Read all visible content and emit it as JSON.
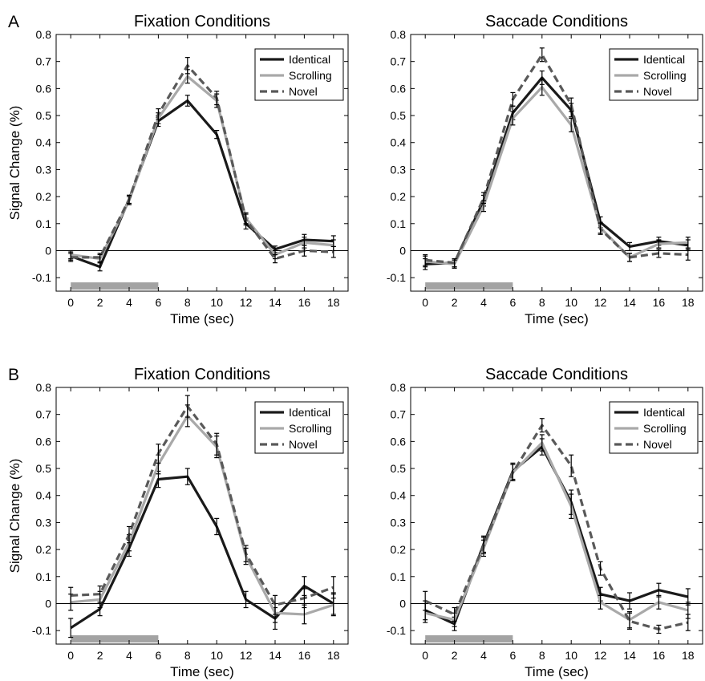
{
  "panel_labels": [
    "A",
    "B"
  ],
  "colors": {
    "Identical": "#1a1a1a",
    "Scrolling": "#a9a9a9",
    "Novel": "#595959",
    "stim_bar": "#a3a3a3"
  },
  "chart_data": [
    {
      "type": "line",
      "panel": "A",
      "title": "Fixation Conditions",
      "xlabel": "Time (sec)",
      "ylabel": "Signal Change (%)",
      "x": [
        0,
        2,
        4,
        6,
        8,
        10,
        12,
        14,
        16,
        18
      ],
      "xticks": [
        "0",
        "2",
        "4",
        "6",
        "8",
        "10",
        "12",
        "14",
        "16",
        "18"
      ],
      "yticks": [
        "-0.1",
        "0",
        "0.1",
        "0.2",
        "0.3",
        "0.4",
        "0.5",
        "0.6",
        "0.7",
        "0.8"
      ],
      "xlim": [
        -1,
        19
      ],
      "ylim": [
        -0.15,
        0.8
      ],
      "grid": false,
      "legend": "top-right",
      "stimulus_period": [
        0,
        6
      ],
      "series": [
        {
          "name": "Identical",
          "style": "solid",
          "values": [
            -0.02,
            -0.06,
            0.19,
            0.48,
            0.555,
            0.43,
            0.1,
            0.005,
            0.04,
            0.035
          ],
          "errors": [
            0.015,
            0.015,
            0.015,
            0.02,
            0.02,
            0.015,
            0.02,
            0.012,
            0.02,
            0.02
          ]
        },
        {
          "name": "Scrolling",
          "style": "solid",
          "values": [
            -0.015,
            -0.03,
            0.185,
            0.49,
            0.645,
            0.555,
            0.12,
            -0.015,
            0.03,
            0.02
          ],
          "errors": [
            0.015,
            0.015,
            0.015,
            0.02,
            0.025,
            0.025,
            0.02,
            0.015,
            0.02,
            0.02
          ]
        },
        {
          "name": "Novel",
          "style": "dashed",
          "values": [
            -0.025,
            -0.025,
            0.19,
            0.505,
            0.685,
            0.565,
            0.115,
            -0.03,
            0.0,
            -0.005
          ],
          "errors": [
            0.015,
            0.015,
            0.015,
            0.02,
            0.03,
            0.025,
            0.02,
            0.015,
            0.02,
            0.02
          ]
        }
      ]
    },
    {
      "type": "line",
      "panel": "A",
      "title": "Saccade Conditions",
      "xlabel": "Time (sec)",
      "ylabel": "",
      "x": [
        0,
        2,
        4,
        6,
        8,
        10,
        12,
        14,
        16,
        18
      ],
      "xticks": [
        "0",
        "2",
        "4",
        "6",
        "8",
        "10",
        "12",
        "14",
        "16",
        "18"
      ],
      "yticks": [
        "-0.1",
        "0",
        "0.1",
        "0.2",
        "0.3",
        "0.4",
        "0.5",
        "0.6",
        "0.7",
        "0.8"
      ],
      "xlim": [
        -1,
        19
      ],
      "ylim": [
        -0.15,
        0.8
      ],
      "grid": false,
      "legend": "top-right",
      "stimulus_period": [
        0,
        6
      ],
      "series": [
        {
          "name": "Identical",
          "style": "solid",
          "values": [
            -0.05,
            -0.045,
            0.185,
            0.51,
            0.64,
            0.52,
            0.105,
            0.015,
            0.035,
            0.02
          ],
          "errors": [
            0.02,
            0.015,
            0.02,
            0.025,
            0.025,
            0.025,
            0.02,
            0.015,
            0.015,
            0.02
          ]
        },
        {
          "name": "Scrolling",
          "style": "solid",
          "values": [
            -0.04,
            -0.05,
            0.165,
            0.49,
            0.605,
            0.465,
            0.085,
            -0.025,
            0.025,
            0.03
          ],
          "errors": [
            0.02,
            0.015,
            0.02,
            0.025,
            0.03,
            0.025,
            0.02,
            0.015,
            0.015,
            0.02
          ]
        },
        {
          "name": "Novel",
          "style": "dashed",
          "values": [
            -0.035,
            -0.045,
            0.195,
            0.56,
            0.725,
            0.54,
            0.08,
            -0.025,
            -0.01,
            -0.015
          ],
          "errors": [
            0.02,
            0.015,
            0.02,
            0.025,
            0.025,
            0.025,
            0.02,
            0.015,
            0.015,
            0.02
          ]
        }
      ]
    },
    {
      "type": "line",
      "panel": "B",
      "title": "Fixation Conditions",
      "xlabel": "Time (sec)",
      "ylabel": "Signal Change (%)",
      "x": [
        0,
        2,
        4,
        6,
        8,
        10,
        12,
        14,
        16,
        18
      ],
      "xticks": [
        "0",
        "2",
        "4",
        "6",
        "8",
        "10",
        "12",
        "14",
        "16",
        "18"
      ],
      "yticks": [
        "-0.1",
        "0",
        "0.1",
        "0.2",
        "0.3",
        "0.4",
        "0.5",
        "0.6",
        "0.7",
        "0.8"
      ],
      "xlim": [
        -1,
        19
      ],
      "ylim": [
        -0.15,
        0.8
      ],
      "grid": false,
      "legend": "top-right",
      "stimulus_period": [
        0,
        6
      ],
      "series": [
        {
          "name": "Identical",
          "style": "solid",
          "values": [
            -0.09,
            -0.02,
            0.205,
            0.46,
            0.47,
            0.285,
            0.015,
            -0.055,
            0.065,
            0.0
          ],
          "errors": [
            0.035,
            0.025,
            0.03,
            0.03,
            0.03,
            0.03,
            0.03,
            0.04,
            0.035,
            0.04
          ]
        },
        {
          "name": "Scrolling",
          "style": "solid",
          "values": [
            0.005,
            0.015,
            0.225,
            0.515,
            0.695,
            0.58,
            0.175,
            -0.035,
            -0.04,
            -0.005
          ],
          "errors": [
            0.03,
            0.03,
            0.03,
            0.035,
            0.04,
            0.04,
            0.03,
            0.035,
            0.035,
            0.04
          ]
        },
        {
          "name": "Novel",
          "style": "dashed",
          "values": [
            0.03,
            0.035,
            0.255,
            0.555,
            0.73,
            0.59,
            0.185,
            -0.005,
            0.02,
            0.06
          ],
          "errors": [
            0.03,
            0.03,
            0.03,
            0.035,
            0.04,
            0.04,
            0.03,
            0.035,
            0.035,
            0.04
          ]
        }
      ]
    },
    {
      "type": "line",
      "panel": "B",
      "title": "Saccade Conditions",
      "xlabel": "Time (sec)",
      "ylabel": "",
      "x": [
        0,
        2,
        4,
        6,
        8,
        10,
        12,
        14,
        16,
        18
      ],
      "xticks": [
        "0",
        "2",
        "4",
        "6",
        "8",
        "10",
        "12",
        "14",
        "16",
        "18"
      ],
      "yticks": [
        "-0.1",
        "0",
        "0.1",
        "0.2",
        "0.3",
        "0.4",
        "0.5",
        "0.6",
        "0.7",
        "0.8"
      ],
      "xlim": [
        -1,
        19
      ],
      "ylim": [
        -0.15,
        0.8
      ],
      "grid": false,
      "legend": "top-right",
      "stimulus_period": [
        0,
        6
      ],
      "series": [
        {
          "name": "Identical",
          "style": "solid",
          "values": [
            -0.025,
            -0.075,
            0.22,
            0.49,
            0.58,
            0.375,
            0.035,
            0.01,
            0.05,
            0.025
          ],
          "errors": [
            0.035,
            0.025,
            0.03,
            0.03,
            0.03,
            0.045,
            0.025,
            0.03,
            0.025,
            0.03
          ]
        },
        {
          "name": "Scrolling",
          "style": "solid",
          "values": [
            -0.035,
            -0.06,
            0.205,
            0.485,
            0.595,
            0.36,
            0.005,
            -0.06,
            0.005,
            -0.025
          ],
          "errors": [
            0.035,
            0.025,
            0.03,
            0.03,
            0.03,
            0.045,
            0.025,
            0.03,
            0.025,
            0.03
          ]
        },
        {
          "name": "Novel",
          "style": "dashed",
          "values": [
            0.01,
            -0.04,
            0.215,
            0.485,
            0.66,
            0.51,
            0.13,
            -0.065,
            -0.095,
            -0.07
          ],
          "errors": [
            0.035,
            0.025,
            0.03,
            0.03,
            0.025,
            0.04,
            0.025,
            0.03,
            0.015,
            0.03
          ]
        }
      ]
    }
  ]
}
